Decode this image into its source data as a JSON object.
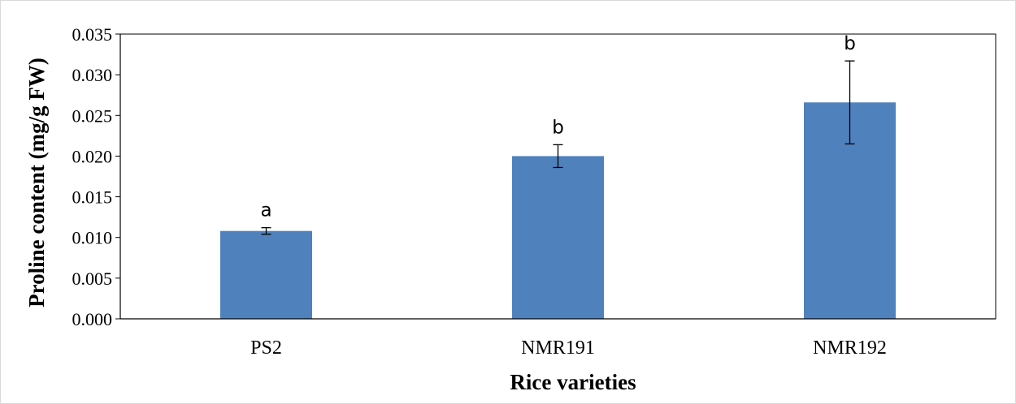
{
  "chart_data": {
    "type": "bar",
    "categories": [
      "PS2",
      "NMR191",
      "NMR192"
    ],
    "values": [
      0.0108,
      0.02,
      0.0266
    ],
    "errors": [
      0.0004,
      0.0014,
      0.0051
    ],
    "significance_labels": [
      "a",
      "b",
      "b"
    ],
    "xlabel": "Rice varieties",
    "ylabel": "Proline content (mg/g FW)",
    "ylim": [
      0,
      0.035
    ],
    "yticks": [
      "0.000",
      "0.005",
      "0.010",
      "0.015",
      "0.020",
      "0.025",
      "0.030",
      "0.035"
    ],
    "grid": false,
    "legend": "none"
  },
  "colors": {
    "bar": "#4f81bd",
    "axis": "#000000"
  }
}
